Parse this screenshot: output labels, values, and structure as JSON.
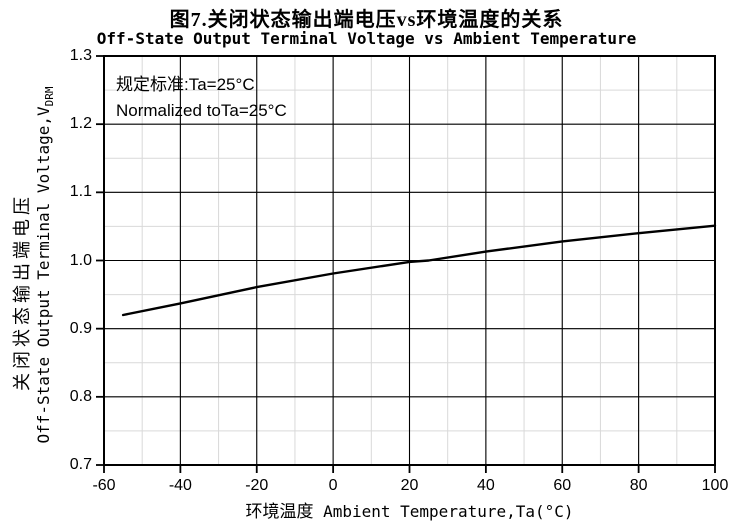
{
  "header": {
    "title_cn": "图7.关闭状态输出端电压vs环境温度的关系",
    "title_en": "Off-State Output Terminal Voltage vs Ambient Temperature"
  },
  "annotation": {
    "line1": "规定标准:Ta=25°C",
    "line2": "Normalized toTa=25°C"
  },
  "y_axis": {
    "label_cn": "关闭状态输出端电压",
    "label_en": "Off-State Output Terminal Voltage,V",
    "label_sub": "DRM"
  },
  "x_axis": {
    "label_cn": "环境温度",
    "label_en": " Ambient Temperature,Ta(°C)"
  },
  "colors": {
    "line": "#000000",
    "frame": "#000000",
    "major_grid": "#000000",
    "minor_grid": "#d9d9d9",
    "text": "#000000",
    "background": "#ffffff"
  },
  "chart_data": {
    "type": "line",
    "title": "Off-State Output Terminal Voltage vs Ambient Temperature",
    "title_cn": "图7.关闭状态输出端电压vs环境温度的关系",
    "xlabel": "环境温度 Ambient Temperature,Ta(°C)",
    "ylabel": "关闭状态输出端电压 Off-State Output Terminal Voltage,VDRM",
    "annotations": [
      "规定标准:Ta=25°C",
      "Normalized toTa=25°C"
    ],
    "xlim": [
      -60,
      100
    ],
    "ylim": [
      0.7,
      1.3
    ],
    "x_ticks": [
      -60,
      -40,
      -20,
      0,
      20,
      40,
      60,
      80,
      100
    ],
    "y_ticks": [
      0.7,
      0.8,
      0.9,
      1.0,
      1.1,
      1.2,
      1.3
    ],
    "x_minor_step": 10,
    "y_minor_step": 0.05,
    "grid": "major black, minor light gray, boxed frame",
    "legend": "none",
    "series": [
      {
        "name": "normalized-off-state-voltage",
        "x": [
          -55,
          -40,
          -20,
          0,
          20,
          25,
          40,
          60,
          80,
          100
        ],
        "y": [
          0.92,
          0.937,
          0.961,
          0.981,
          0.998,
          1.0,
          1.013,
          1.028,
          1.04,
          1.051
        ]
      }
    ]
  }
}
